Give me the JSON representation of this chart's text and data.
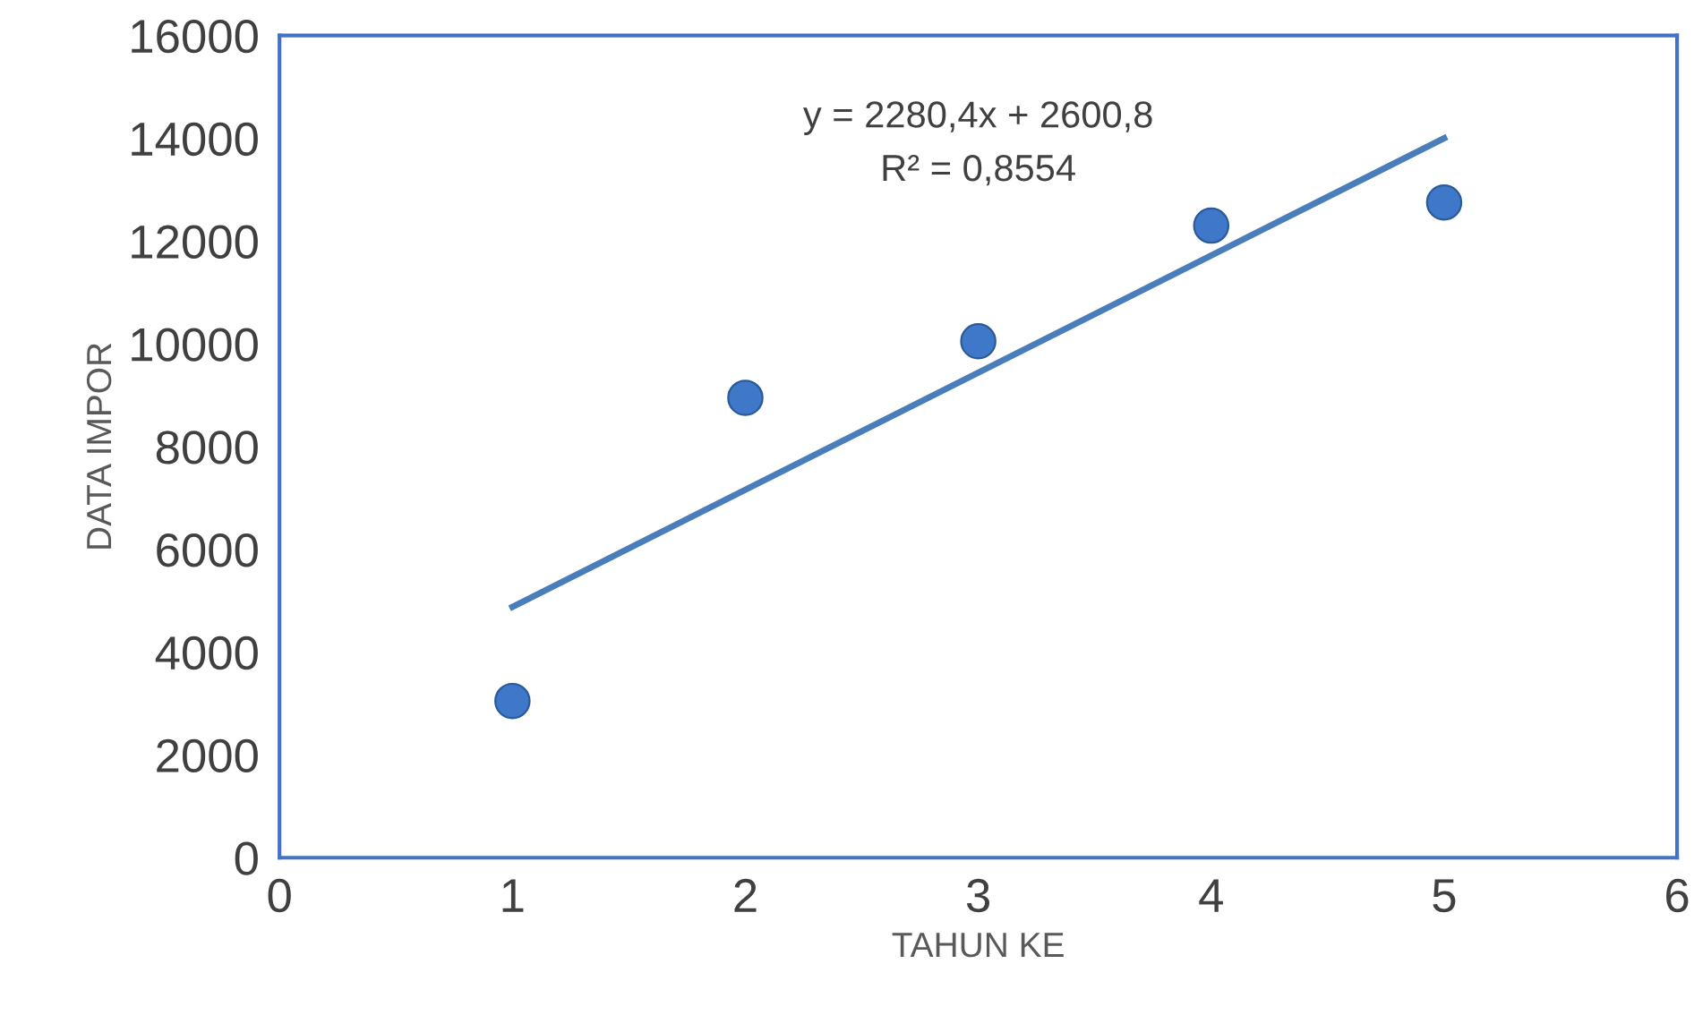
{
  "chart_data": {
    "type": "scatter",
    "xlabel": "TAHUN KE",
    "ylabel": "DATA IMPOR",
    "xlim": [
      0,
      6
    ],
    "xticks": [
      0,
      1,
      2,
      3,
      4,
      5,
      6
    ],
    "ylim": [
      0,
      16000
    ],
    "yticks": [
      0,
      2000,
      4000,
      6000,
      8000,
      10000,
      12000,
      14000,
      16000
    ],
    "grid": false,
    "legend": false,
    "series": [
      {
        "color": "#3f78c8",
        "marker": "circle",
        "x": [
          1,
          2,
          3,
          4,
          5
        ],
        "values": [
          3050,
          8950,
          10050,
          12300,
          12750
        ]
      },
      {
        "type": "line",
        "color": "#4a7ebb",
        "marker": "none",
        "x": [
          1,
          5
        ],
        "values": [
          4880,
          14000
        ],
        "line_style": "solid"
      }
    ],
    "annotations": [
      "y = 2280,4x + 2600,8",
      "R² = 0,8554"
    ]
  }
}
